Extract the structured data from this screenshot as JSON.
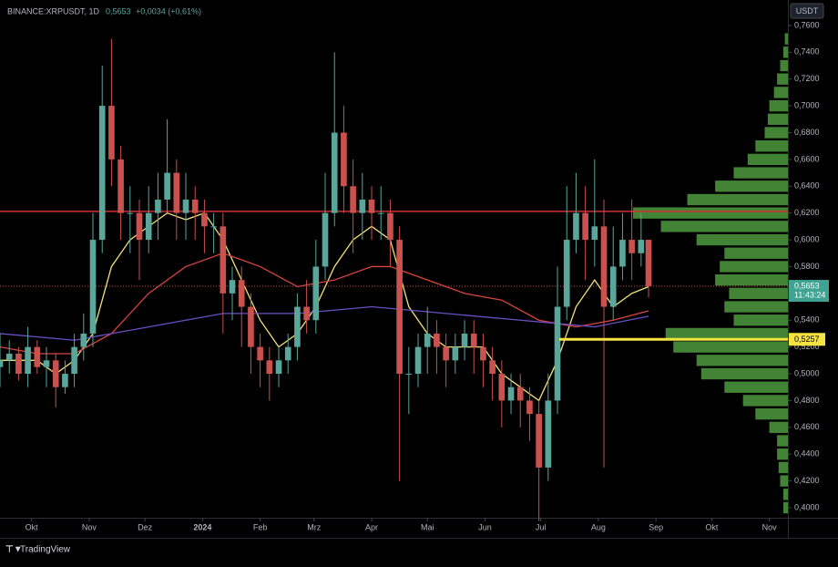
{
  "chart_data": {
    "type": "candlestick",
    "title": "BINANCE:XRPUSDT, 1D",
    "last_price": "0,5653",
    "change": "+0,0034 (+0,61%)",
    "currency": "USDT",
    "brand": "TradingView",
    "up_color": "#5aa69b",
    "down_color": "#c9514e",
    "xlim": [
      -17,
      407
    ],
    "ylim": [
      0.3925,
      0.779
    ],
    "grid": false,
    "xticks": [
      {
        "value": 0,
        "label": "Okt"
      },
      {
        "value": 31,
        "label": "Nov"
      },
      {
        "value": 61,
        "label": "Dez"
      },
      {
        "value": 92,
        "label": "2024"
      },
      {
        "value": 123,
        "label": "Feb"
      },
      {
        "value": 152,
        "label": "Mrz"
      },
      {
        "value": 183,
        "label": "Apr"
      },
      {
        "value": 213,
        "label": "Mai"
      },
      {
        "value": 244,
        "label": "Jun"
      },
      {
        "value": 274,
        "label": "Jul"
      },
      {
        "value": 305,
        "label": "Aug"
      },
      {
        "value": 336,
        "label": "Sep"
      },
      {
        "value": 366,
        "label": "Okt"
      },
      {
        "value": 397,
        "label": "Nov"
      }
    ],
    "yticks": [
      {
        "value": 0.76,
        "label": "0,7600"
      },
      {
        "value": 0.74,
        "label": "0,7400"
      },
      {
        "value": 0.72,
        "label": "0,7200"
      },
      {
        "value": 0.7,
        "label": "0,7000"
      },
      {
        "value": 0.68,
        "label": "0,6800"
      },
      {
        "value": 0.66,
        "label": "0,6600"
      },
      {
        "value": 0.64,
        "label": "0,6400"
      },
      {
        "value": 0.62,
        "label": "0,6200"
      },
      {
        "value": 0.6,
        "label": "0,6000"
      },
      {
        "value": 0.58,
        "label": "0,5800"
      },
      {
        "value": 0.56,
        "label": "0,5600"
      },
      {
        "value": 0.54,
        "label": "0,5400"
      },
      {
        "value": 0.52,
        "label": "0,5200"
      },
      {
        "value": 0.5,
        "label": "0,5000"
      },
      {
        "value": 0.48,
        "label": "0,4800"
      },
      {
        "value": 0.46,
        "label": "0,4600"
      },
      {
        "value": 0.44,
        "label": "0,4400"
      },
      {
        "value": 0.42,
        "label": "0,4200"
      },
      {
        "value": 0.4,
        "label": "0,4000"
      }
    ],
    "x": [
      -17,
      -12,
      -7,
      -2,
      3,
      8,
      13,
      18,
      23,
      28,
      33,
      38,
      43,
      48,
      53,
      58,
      63,
      68,
      73,
      78,
      83,
      88,
      93,
      98,
      103,
      108,
      113,
      118,
      123,
      128,
      133,
      138,
      143,
      148,
      153,
      158,
      163,
      168,
      173,
      178,
      183,
      188,
      193,
      198,
      203,
      208,
      213,
      218,
      223,
      228,
      233,
      238,
      243,
      248,
      253,
      258,
      263,
      268,
      273,
      278,
      283,
      288,
      293,
      298,
      303,
      308,
      313,
      318,
      323,
      328,
      332
    ],
    "open": [
      0.505,
      0.51,
      0.515,
      0.5,
      0.52,
      0.505,
      0.51,
      0.49,
      0.5,
      0.52,
      0.53,
      0.6,
      0.7,
      0.66,
      0.62,
      0.62,
      0.6,
      0.62,
      0.63,
      0.65,
      0.62,
      0.63,
      0.62,
      0.61,
      0.61,
      0.56,
      0.57,
      0.55,
      0.52,
      0.51,
      0.5,
      0.51,
      0.52,
      0.55,
      0.54,
      0.58,
      0.62,
      0.68,
      0.64,
      0.62,
      0.63,
      0.62,
      0.62,
      0.6,
      0.5,
      0.5,
      0.52,
      0.53,
      0.52,
      0.51,
      0.52,
      0.53,
      0.52,
      0.51,
      0.5,
      0.48,
      0.49,
      0.48,
      0.47,
      0.43,
      0.48,
      0.55,
      0.6,
      0.62,
      0.6,
      0.61,
      0.55,
      0.58,
      0.6,
      0.59,
      0.6
    ],
    "high": [
      0.53,
      0.525,
      0.52,
      0.535,
      0.525,
      0.52,
      0.515,
      0.51,
      0.53,
      0.545,
      0.62,
      0.73,
      0.75,
      0.67,
      0.64,
      0.63,
      0.64,
      0.65,
      0.69,
      0.66,
      0.65,
      0.64,
      0.63,
      0.62,
      0.62,
      0.58,
      0.58,
      0.56,
      0.53,
      0.52,
      0.52,
      0.53,
      0.56,
      0.57,
      0.6,
      0.65,
      0.74,
      0.7,
      0.66,
      0.65,
      0.64,
      0.64,
      0.63,
      0.61,
      0.52,
      0.53,
      0.55,
      0.54,
      0.53,
      0.53,
      0.54,
      0.54,
      0.53,
      0.52,
      0.51,
      0.5,
      0.5,
      0.49,
      0.48,
      0.5,
      0.58,
      0.64,
      0.65,
      0.64,
      0.66,
      0.63,
      0.61,
      0.62,
      0.63,
      0.62,
      0.6
    ],
    "low": [
      0.49,
      0.5,
      0.495,
      0.49,
      0.5,
      0.49,
      0.475,
      0.485,
      0.49,
      0.51,
      0.52,
      0.59,
      0.64,
      0.6,
      0.59,
      0.57,
      0.59,
      0.6,
      0.62,
      0.6,
      0.6,
      0.6,
      0.59,
      0.59,
      0.53,
      0.54,
      0.52,
      0.5,
      0.49,
      0.48,
      0.49,
      0.5,
      0.51,
      0.53,
      0.53,
      0.57,
      0.61,
      0.62,
      0.59,
      0.6,
      0.6,
      0.6,
      0.58,
      0.42,
      0.47,
      0.49,
      0.5,
      0.5,
      0.49,
      0.5,
      0.51,
      0.5,
      0.49,
      0.48,
      0.46,
      0.47,
      0.46,
      0.45,
      0.39,
      0.42,
      0.47,
      0.54,
      0.59,
      0.57,
      0.58,
      0.43,
      0.54,
      0.57,
      0.57,
      0.58,
      0.557
    ],
    "close": [
      0.51,
      0.515,
      0.5,
      0.52,
      0.505,
      0.51,
      0.49,
      0.5,
      0.52,
      0.53,
      0.6,
      0.7,
      0.66,
      0.62,
      0.62,
      0.6,
      0.62,
      0.63,
      0.65,
      0.62,
      0.63,
      0.62,
      0.61,
      0.61,
      0.56,
      0.57,
      0.55,
      0.52,
      0.51,
      0.5,
      0.51,
      0.52,
      0.55,
      0.54,
      0.58,
      0.62,
      0.68,
      0.64,
      0.62,
      0.63,
      0.62,
      0.62,
      0.6,
      0.5,
      0.5,
      0.52,
      0.53,
      0.52,
      0.51,
      0.52,
      0.53,
      0.52,
      0.51,
      0.5,
      0.48,
      0.49,
      0.48,
      0.47,
      0.43,
      0.48,
      0.55,
      0.6,
      0.62,
      0.6,
      0.61,
      0.55,
      0.58,
      0.6,
      0.59,
      0.6,
      0.5653
    ],
    "lines": [
      {
        "color": "#f2e27a",
        "x": [
          -17,
          -7,
          3,
          13,
          23,
          33,
          43,
          53,
          63,
          73,
          83,
          93,
          103,
          113,
          123,
          133,
          143,
          153,
          163,
          173,
          183,
          193,
          203,
          213,
          223,
          233,
          243,
          253,
          263,
          273,
          283,
          293,
          303,
          313,
          323,
          332
        ],
        "values": [
          0.51,
          0.51,
          0.51,
          0.5,
          0.51,
          0.53,
          0.58,
          0.6,
          0.61,
          0.62,
          0.615,
          0.62,
          0.6,
          0.57,
          0.54,
          0.52,
          0.53,
          0.55,
          0.58,
          0.6,
          0.61,
          0.6,
          0.55,
          0.53,
          0.52,
          0.52,
          0.52,
          0.5,
          0.49,
          0.48,
          0.51,
          0.55,
          0.57,
          0.55,
          0.56,
          0.565
        ]
      },
      {
        "color": "#d9443f",
        "x": [
          -17,
          3,
          23,
          43,
          63,
          83,
          103,
          123,
          143,
          163,
          183,
          193,
          213,
          233,
          253,
          273,
          293,
          313,
          332
        ],
        "values": [
          0.52,
          0.515,
          0.515,
          0.53,
          0.56,
          0.58,
          0.59,
          0.58,
          0.565,
          0.57,
          0.58,
          0.58,
          0.57,
          0.56,
          0.555,
          0.54,
          0.535,
          0.54,
          0.547
        ]
      },
      {
        "color": "#6a4fc4",
        "x": [
          -17,
          23,
          63,
          103,
          143,
          183,
          223,
          263,
          303,
          332
        ],
        "values": [
          0.53,
          0.525,
          0.535,
          0.545,
          0.545,
          0.55,
          0.545,
          0.54,
          0.535,
          0.543
        ]
      }
    ],
    "profile_color": "#4e9a3e",
    "profile_levels": [
      0.4,
      0.41,
      0.42,
      0.43,
      0.44,
      0.45,
      0.46,
      0.47,
      0.48,
      0.49,
      0.5,
      0.51,
      0.52,
      0.53,
      0.54,
      0.55,
      0.56,
      0.57,
      0.58,
      0.59,
      0.6,
      0.61,
      0.62,
      0.63,
      0.64,
      0.65,
      0.66,
      0.67,
      0.68,
      0.69,
      0.7,
      0.71,
      0.72,
      0.73,
      0.74,
      0.75
    ],
    "profile_values": [
      3,
      3,
      5,
      6,
      7,
      7,
      12,
      21,
      29,
      41,
      56,
      59,
      74,
      79,
      35,
      41,
      38,
      47,
      44,
      41,
      59,
      82,
      100,
      65,
      47,
      35,
      26,
      21,
      15,
      13,
      12,
      9,
      7,
      5,
      3,
      2
    ],
    "resistance": {
      "value": 0.6212,
      "color": "#d32f2f"
    },
    "support": {
      "value": 0.5257,
      "label": "0,5257",
      "start": 284,
      "color": "#f5e342"
    },
    "current": {
      "value": 0.5653,
      "label": "0,5653",
      "countdown": "11:43:24",
      "color": "#3fa392"
    }
  }
}
